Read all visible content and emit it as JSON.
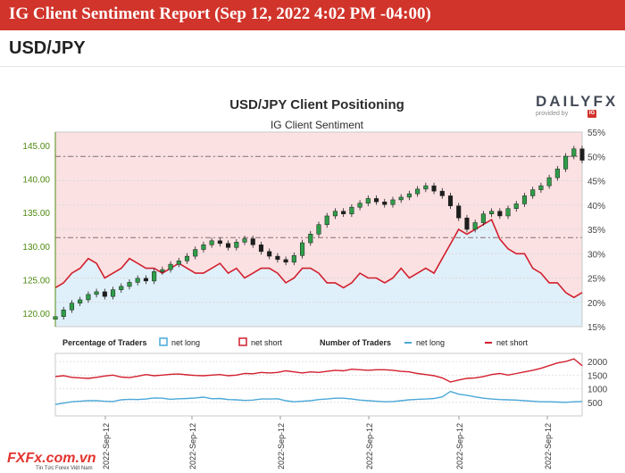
{
  "header": {
    "title": "IG Client Sentiment Report (Sep 12, 2022 4:02 PM -04:00)",
    "pair": "USD/JPY"
  },
  "logo": {
    "text": "DAILYFX",
    "sub": "provided by",
    "ig": "IG"
  },
  "watermark": {
    "main": "FXFx.com.vn",
    "sub": "Tin Tức Forex Việt Nam"
  },
  "colors": {
    "banner": "#d1342b",
    "net_long": "#4aa8d8",
    "net_short": "#d21f2d",
    "price_axis": "#4f8a10",
    "long_fill": "#e0f0fa",
    "short_fill": "#fbe1e2"
  },
  "chart_data": [
    {
      "type": "candlestick",
      "title": "USD/JPY Client Positioning",
      "subtitle": "IG Client Sentiment",
      "y_left": {
        "ylim": [
          118,
          147
        ],
        "ticks": [
          "120.00",
          "125.00",
          "130.00",
          "135.00",
          "140.00",
          "145.00"
        ]
      },
      "y_right": {
        "ylim": [
          15,
          55
        ],
        "ticks": [
          "15%",
          "20%",
          "25%",
          "30%",
          "35%",
          "40%",
          "45%",
          "50%",
          "55%"
        ]
      },
      "reference_lines": [
        50,
        33.3
      ],
      "price_close": [
        119.5,
        120.5,
        121.5,
        122.0,
        122.8,
        123.2,
        122.5,
        123.5,
        124.0,
        124.6,
        125.2,
        124.8,
        126.2,
        126.5,
        127.3,
        127.8,
        128.5,
        129.5,
        130.2,
        130.8,
        130.4,
        129.8,
        130.6,
        131.1,
        130.2,
        129.2,
        128.5,
        128.0,
        127.6,
        128.6,
        130.5,
        131.8,
        133.2,
        134.5,
        135.2,
        134.8,
        135.8,
        136.4,
        137.1,
        136.6,
        136.2,
        136.9,
        137.3,
        137.8,
        138.5,
        139.0,
        138.2,
        137.5,
        136.0,
        134.2,
        132.5,
        133.5,
        134.8,
        135.2,
        134.5,
        135.6,
        136.3,
        137.5,
        138.4,
        139.0,
        140.2,
        141.5,
        143.4,
        144.5,
        142.8
      ],
      "net_long_pct": [
        23,
        24,
        26,
        27,
        29,
        28,
        25,
        26,
        27,
        29,
        28,
        27,
        27,
        26,
        27,
        28,
        27,
        26,
        26,
        27,
        28,
        26,
        27,
        25,
        26,
        27,
        27,
        26,
        24,
        25,
        27,
        27,
        26,
        24,
        24,
        23,
        24,
        26,
        25,
        25,
        24,
        25,
        27,
        25,
        26,
        27,
        26,
        29,
        32,
        35,
        34,
        35,
        36,
        37,
        33,
        31,
        30,
        30,
        27,
        26,
        24,
        24,
        22,
        21,
        22
      ],
      "series_legend": [
        "net long",
        "net short"
      ],
      "legend_label": "Percentage of Traders"
    },
    {
      "type": "line",
      "legend_label": "Number of Traders",
      "series_legend": [
        "net long",
        "net short"
      ],
      "ylim": [
        0,
        2300
      ],
      "y_ticks": [
        "500",
        "1000",
        "1500",
        "2000"
      ],
      "x_ticks": [
        "2022-Sep-12",
        "2022-Sep-12",
        "2022-Sep-12",
        "2022-Sep-12",
        "2022-Sep-12",
        "2022-Sep-12"
      ],
      "net_long": [
        420,
        470,
        520,
        540,
        560,
        560,
        540,
        530,
        590,
        610,
        600,
        620,
        660,
        650,
        610,
        630,
        640,
        660,
        690,
        630,
        640,
        600,
        590,
        570,
        580,
        620,
        620,
        630,
        560,
        520,
        540,
        560,
        600,
        620,
        650,
        650,
        620,
        580,
        560,
        540,
        520,
        530,
        560,
        590,
        610,
        620,
        640,
        700,
        900,
        800,
        760,
        700,
        650,
        620,
        600,
        590,
        580,
        560,
        540,
        520,
        520,
        510,
        500,
        520,
        530
      ],
      "net_short": [
        1450,
        1480,
        1420,
        1400,
        1380,
        1420,
        1470,
        1500,
        1430,
        1410,
        1460,
        1520,
        1480,
        1500,
        1530,
        1540,
        1510,
        1490,
        1480,
        1500,
        1520,
        1480,
        1500,
        1560,
        1550,
        1600,
        1580,
        1600,
        1660,
        1620,
        1580,
        1620,
        1600,
        1640,
        1680,
        1660,
        1720,
        1700,
        1680,
        1700,
        1700,
        1680,
        1640,
        1620,
        1560,
        1520,
        1480,
        1400,
        1250,
        1320,
        1380,
        1400,
        1450,
        1520,
        1560,
        1500,
        1560,
        1620,
        1680,
        1750,
        1850,
        1950,
        2000,
        2100,
        1850
      ]
    }
  ]
}
